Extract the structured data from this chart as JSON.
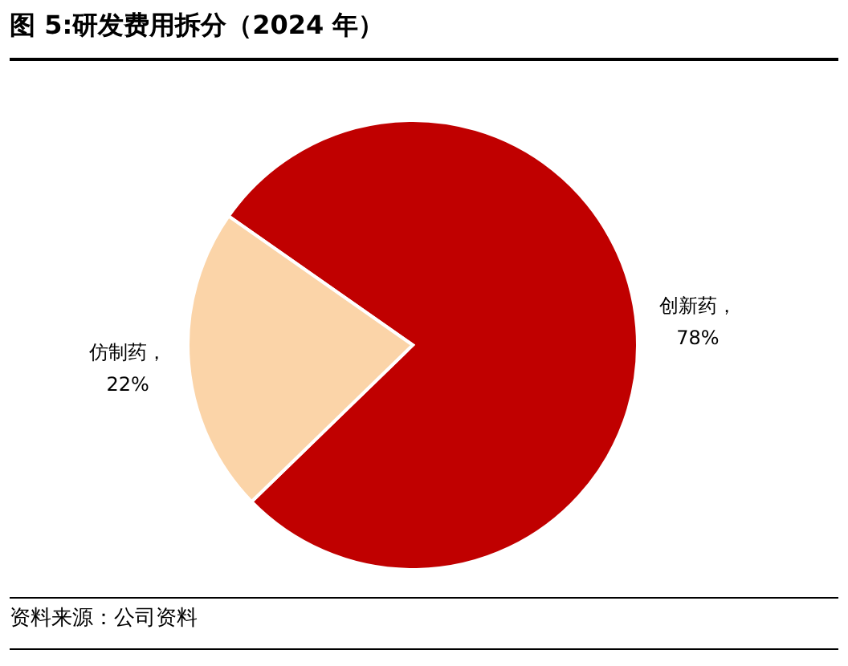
{
  "chart_data": {
    "type": "pie",
    "title": "图 5:研发费用拆分（2024 年）",
    "categories": [
      "创新药",
      "仿制药"
    ],
    "values": [
      78,
      22
    ],
    "value_labels": [
      "，\n78%",
      "，\n22%"
    ],
    "colors": [
      "#c00000",
      "#fbd4a8"
    ],
    "legend": false,
    "annotations": [
      "资料来源：公司资料"
    ]
  }
}
